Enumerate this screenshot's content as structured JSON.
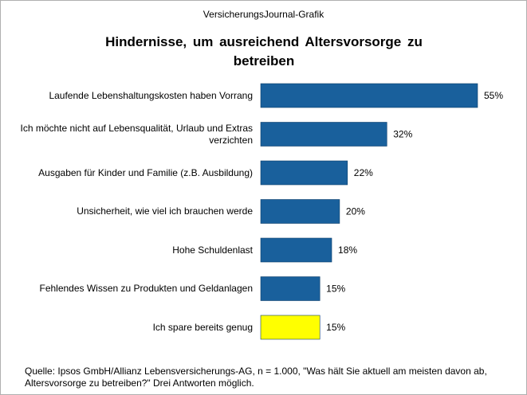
{
  "source": "VersicherungsJournal-Grafik",
  "note": "Quelle: Ipsos GmbH/Allianz Lebensversicherungs-AG,  n = 1.000, \"Was hält Sie aktuell am meisten davon ab, Altersvorsorge  zu betreiben?\" Drei Antworten möglich.",
  "chart_data": {
    "type": "hbar",
    "title": "Hindernisse, um ausreichend Altersvorsorge zu betreiben",
    "categories": [
      "Laufende Lebenshaltungskosten haben Vorrang",
      "Ich möchte nicht auf Lebensqualität, Urlaub und Extras verzichten",
      "Ausgaben für Kinder und Familie (z.B. Ausbildung)",
      "Unsicherheit, wie viel ich brauchen werde",
      "Hohe Schuldenlast",
      "Fehlendes Wissen zu Produkten und Geldanlagen",
      "Ich spare bereits genug"
    ],
    "values": [
      55,
      32,
      22,
      20,
      18,
      15,
      15
    ],
    "value_labels": [
      "55%",
      "32%",
      "22%",
      "20%",
      "18%",
      "15%",
      "15%"
    ],
    "colors": [
      "#19609c",
      "#19609c",
      "#19609c",
      "#19609c",
      "#19609c",
      "#19609c",
      "#ffff00"
    ]
  }
}
